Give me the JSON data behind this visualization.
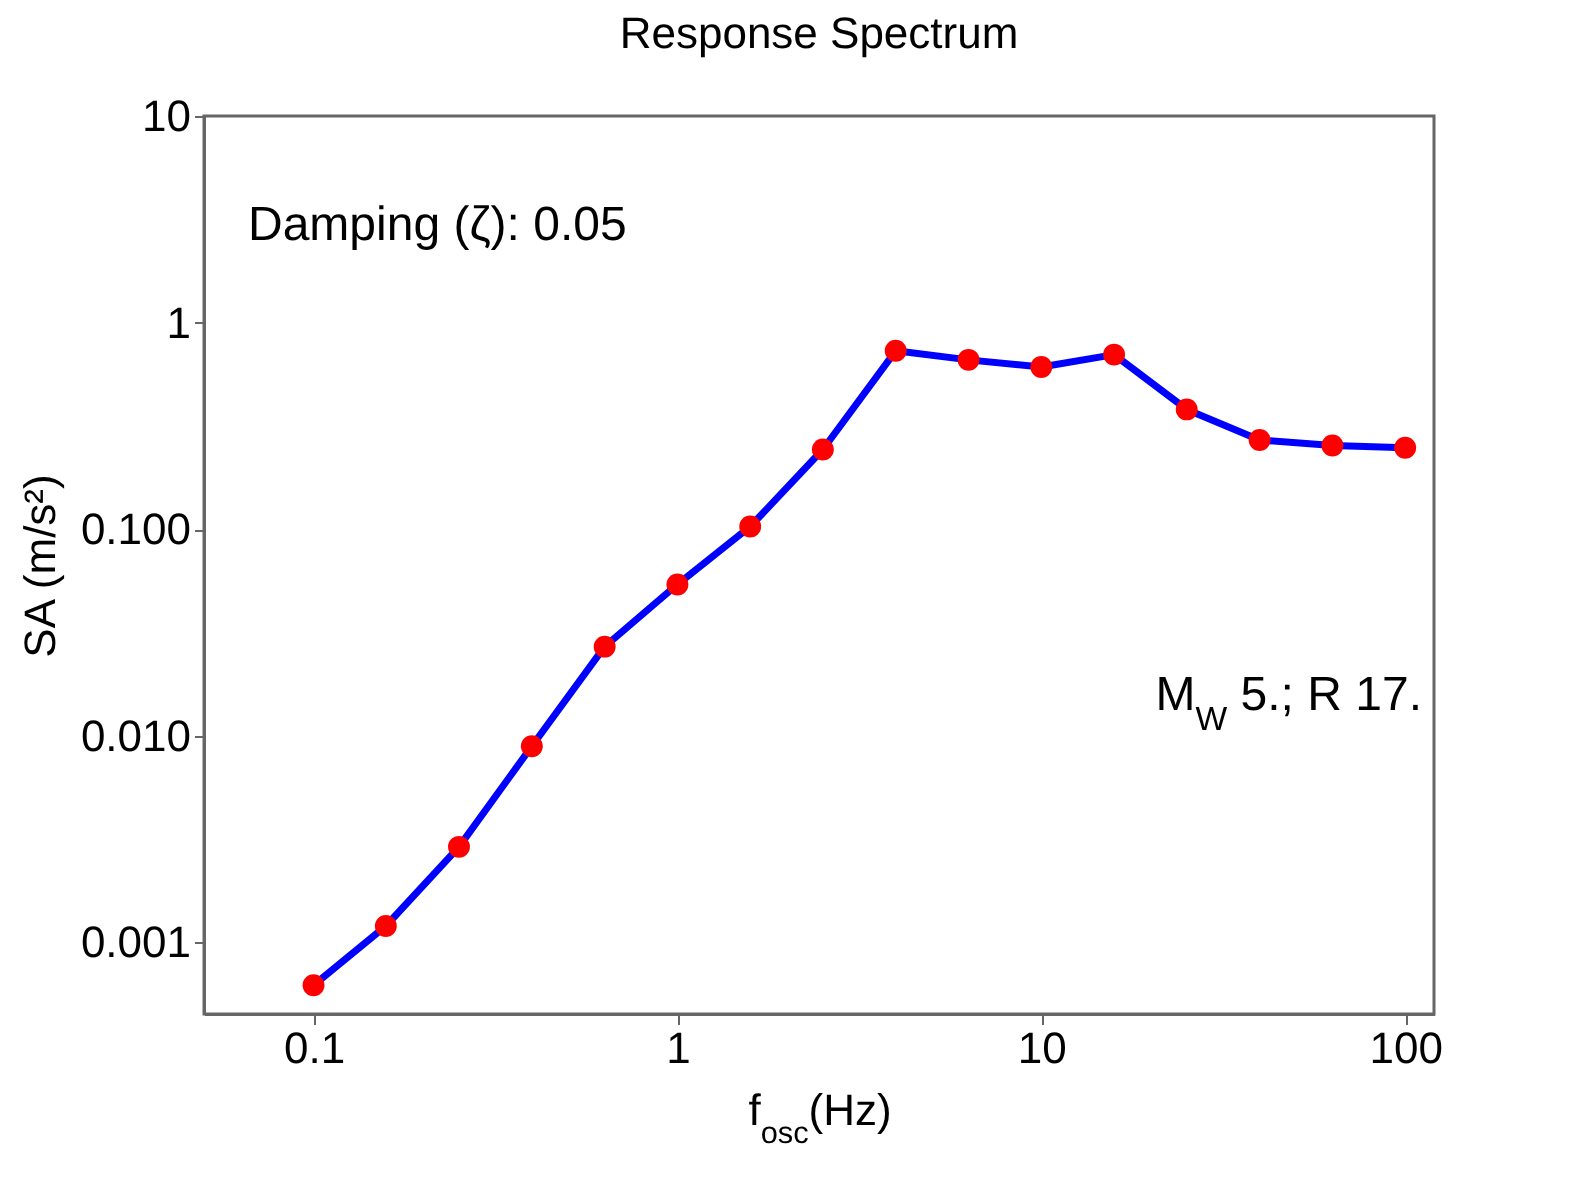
{
  "chart_data": {
    "type": "line",
    "title": "Response Spectrum",
    "xlabel": "f$_{osc}$(Hz)",
    "ylabel": "SA (m/s²)",
    "annotations": [
      "Damping (ζ): 0.05",
      "M$_{W}$ 5.; R 17."
    ],
    "x": [
      0.1,
      0.158,
      0.251,
      0.398,
      0.631,
      1,
      1.585,
      2.51,
      3.98,
      6.31,
      10,
      15.85,
      25.1,
      39.8,
      63.1,
      100
    ],
    "series": [
      {
        "color": "#0000ff",
        "colors": [
          "#ff0000",
          "#ff0000",
          "#ff0000",
          "#ff0000",
          "#ff0000",
          "#ff0000",
          "#ff0000",
          "#ff0000",
          "#ff0000",
          "#ff0000",
          "#ff0000",
          "#ff0000",
          "#ff0000",
          "#ff0000",
          "#ff0000",
          "#ff0000"
        ],
        "values": [
          0.00062,
          0.0012,
          0.0029,
          0.0089,
          0.027,
          0.054,
          0.103,
          0.243,
          0.73,
          0.66,
          0.61,
          0.7,
          0.38,
          0.27,
          0.254,
          0.248
        ]
      }
    ],
    "log": "xy",
    "marker": "circle",
    "line_style": "solid",
    "xlim": [
      0.05,
      120
    ],
    "xticks": [
      0.1,
      1,
      10,
      100
    ],
    "ylim": [
      0.00045,
      10
    ],
    "yticks": [
      {
        "value": 0.001,
        "label": "0.001"
      },
      {
        "value": 0.01,
        "label": "0.010"
      },
      {
        "value": 0.1,
        "label": "0.100"
      },
      1,
      10
    ]
  }
}
